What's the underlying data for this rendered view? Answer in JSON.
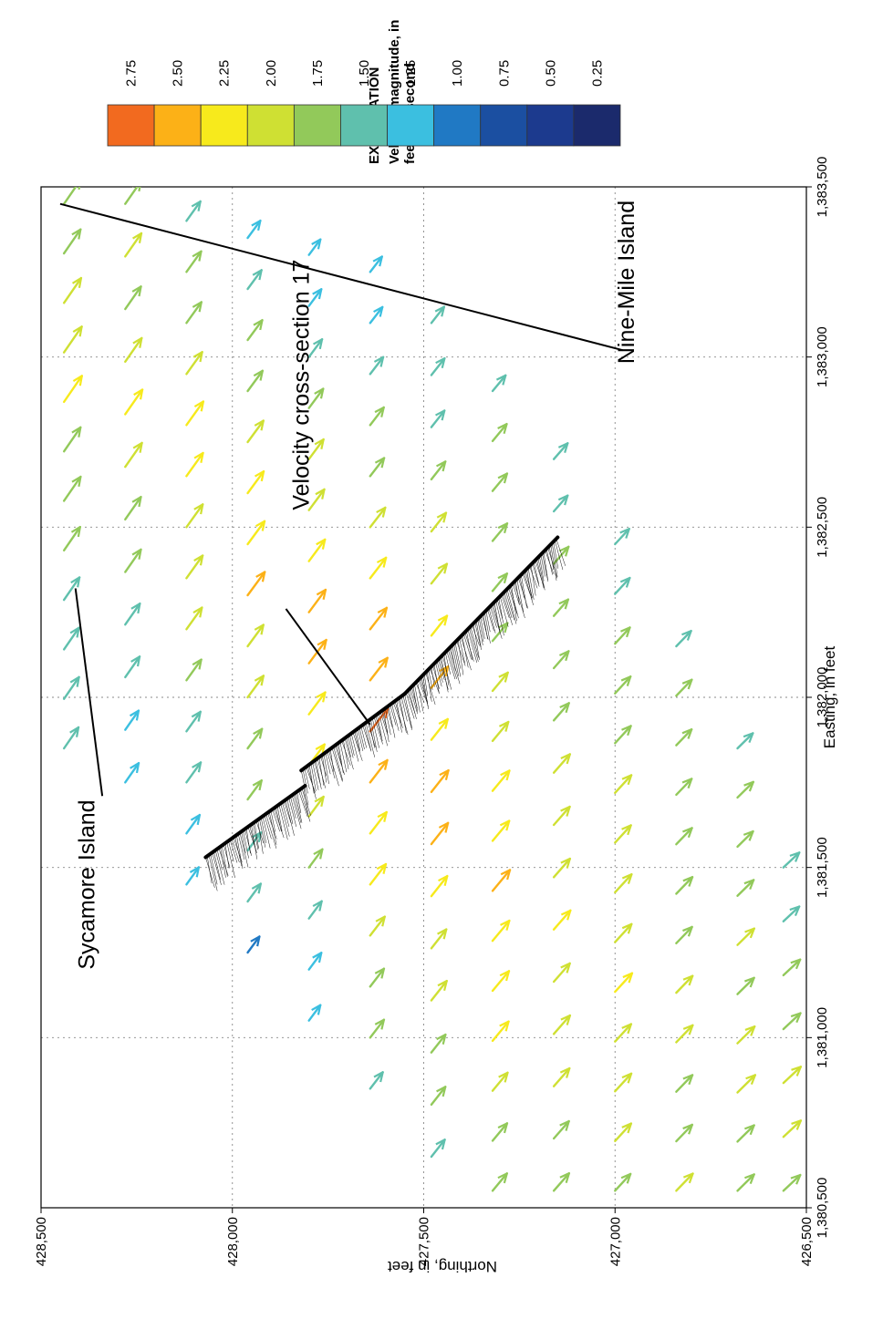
{
  "legend": {
    "heading": "EXPLANATION",
    "title_line1": "Velocity magnitude, in",
    "title_line2": "feet per second",
    "classes": [
      {
        "label": "2.75",
        "color": "#f26a1f"
      },
      {
        "label": "2.50",
        "color": "#fcb117"
      },
      {
        "label": "2.25",
        "color": "#f7ea1c"
      },
      {
        "label": "2.00",
        "color": "#cfe033"
      },
      {
        "label": "1.75",
        "color": "#92c95a"
      },
      {
        "label": "1.50",
        "color": "#5fc0ad"
      },
      {
        "label": "1.25",
        "color": "#3bbfe0"
      },
      {
        "label": "1.00",
        "color": "#2079c4"
      },
      {
        "label": "0.75",
        "color": "#1b4fa1"
      },
      {
        "label": "0.50",
        "color": "#1c3a8e"
      },
      {
        "label": "0.25",
        "color": "#1b2a6c"
      }
    ]
  },
  "chart_data": {
    "type": "scatter",
    "subtype": "velocity-vector-field",
    "xlabel": "Easting, in feet",
    "ylabel": "Northing, in feet",
    "xlim": [
      1380500,
      1383500
    ],
    "ylim": [
      426500,
      428500
    ],
    "x_ticks": [
      {
        "value": 1380500,
        "label": "1,380,500"
      },
      {
        "value": 1381000,
        "label": "1,381,000"
      },
      {
        "value": 1381500,
        "label": "1,381,500"
      },
      {
        "value": 1382000,
        "label": "1,382,000"
      },
      {
        "value": 1382500,
        "label": "1,382,500"
      },
      {
        "value": 1383000,
        "label": "1,383,000"
      },
      {
        "value": 1383500,
        "label": "1,383,500"
      }
    ],
    "y_ticks": [
      {
        "value": 426500,
        "label": "426,500"
      },
      {
        "value": 427000,
        "label": "427,000"
      },
      {
        "value": 427500,
        "label": "427,500"
      },
      {
        "value": 428000,
        "label": "428,000"
      },
      {
        "value": 428500,
        "label": "428,500"
      }
    ],
    "grid": true,
    "annotations": [
      {
        "text": "Sycamore Island",
        "x": 1381200,
        "y": 428360
      },
      {
        "text": "Velocity cross-section  17",
        "x": 1382550,
        "y": 427800
      },
      {
        "text": "Nine-Mile Island",
        "x": 1382980,
        "y": 426950
      }
    ],
    "leader_lines": [
      {
        "from": [
          1381710,
          428340
        ],
        "to": [
          1382320,
          428410
        ]
      },
      {
        "from": [
          1382260,
          427860
        ],
        "to": [
          1381920,
          427640
        ]
      },
      {
        "from": [
          1383020,
          426980
        ],
        "to": [
          1383450,
          428450
        ]
      }
    ],
    "cross_section_line": [
      [
        1381530,
        428070
      ],
      [
        1381740,
        427810
      ],
      [
        1381785,
        427820
      ],
      [
        1382010,
        427550
      ],
      [
        1382470,
        427150
      ]
    ],
    "vector_rows": [
      {
        "y": 428440,
        "x_start": 1381850,
        "x_end": 1383450,
        "dx": 62,
        "dy": -38,
        "peak_speed": 2.1,
        "edge_speed": 1.4,
        "peak_pos": 0.7
      },
      {
        "y": 428280,
        "x_start": 1381750,
        "x_end": 1383450,
        "dx": 58,
        "dy": -36,
        "peak_speed": 2.2,
        "edge_speed": 1.3,
        "peak_pos": 0.65
      },
      {
        "y": 428120,
        "x_start": 1381450,
        "x_end": 1383400,
        "dx": 55,
        "dy": -35,
        "peak_speed": 2.25,
        "edge_speed": 1.25,
        "peak_pos": 0.6
      },
      {
        "y": 427960,
        "x_start": 1381250,
        "x_end": 1383350,
        "dx": 52,
        "dy": -34,
        "peak_speed": 2.4,
        "edge_speed": 1.2,
        "peak_pos": 0.55
      },
      {
        "y": 427800,
        "x_start": 1381050,
        "x_end": 1383300,
        "dx": 50,
        "dy": -33,
        "peak_speed": 2.55,
        "edge_speed": 1.2,
        "peak_pos": 0.5
      },
      {
        "y": 427640,
        "x_start": 1380850,
        "x_end": 1383250,
        "dx": 48,
        "dy": -33,
        "peak_speed": 2.6,
        "edge_speed": 1.25,
        "peak_pos": 0.45
      },
      {
        "y": 427480,
        "x_start": 1380650,
        "x_end": 1383100,
        "dx": 47,
        "dy": -33,
        "peak_speed": 2.55,
        "edge_speed": 1.35,
        "peak_pos": 0.45
      },
      {
        "y": 427320,
        "x_start": 1380550,
        "x_end": 1382900,
        "dx": 46,
        "dy": -34,
        "peak_speed": 2.4,
        "edge_speed": 1.5,
        "peak_pos": 0.4
      },
      {
        "y": 427160,
        "x_start": 1380550,
        "x_end": 1382700,
        "dx": 45,
        "dy": -35,
        "peak_speed": 2.2,
        "edge_speed": 1.55,
        "peak_pos": 0.35
      },
      {
        "y": 427000,
        "x_start": 1380550,
        "x_end": 1382450,
        "dx": 44,
        "dy": -36,
        "peak_speed": 2.1,
        "edge_speed": 1.6,
        "peak_pos": 0.3
      },
      {
        "y": 426840,
        "x_start": 1380550,
        "x_end": 1382150,
        "dx": 43,
        "dy": -37,
        "peak_speed": 2.0,
        "edge_speed": 1.55,
        "peak_pos": 0.25
      },
      {
        "y": 426680,
        "x_start": 1380550,
        "x_end": 1381850,
        "dx": 42,
        "dy": -38,
        "peak_speed": 2.0,
        "edge_speed": 1.5,
        "peak_pos": 0.2
      },
      {
        "y": 426560,
        "x_start": 1380550,
        "x_end": 1381500,
        "dx": 41,
        "dy": -39,
        "peak_speed": 1.95,
        "edge_speed": 1.5,
        "peak_pos": 0.2
      }
    ],
    "vector_spacing_x": 150
  }
}
